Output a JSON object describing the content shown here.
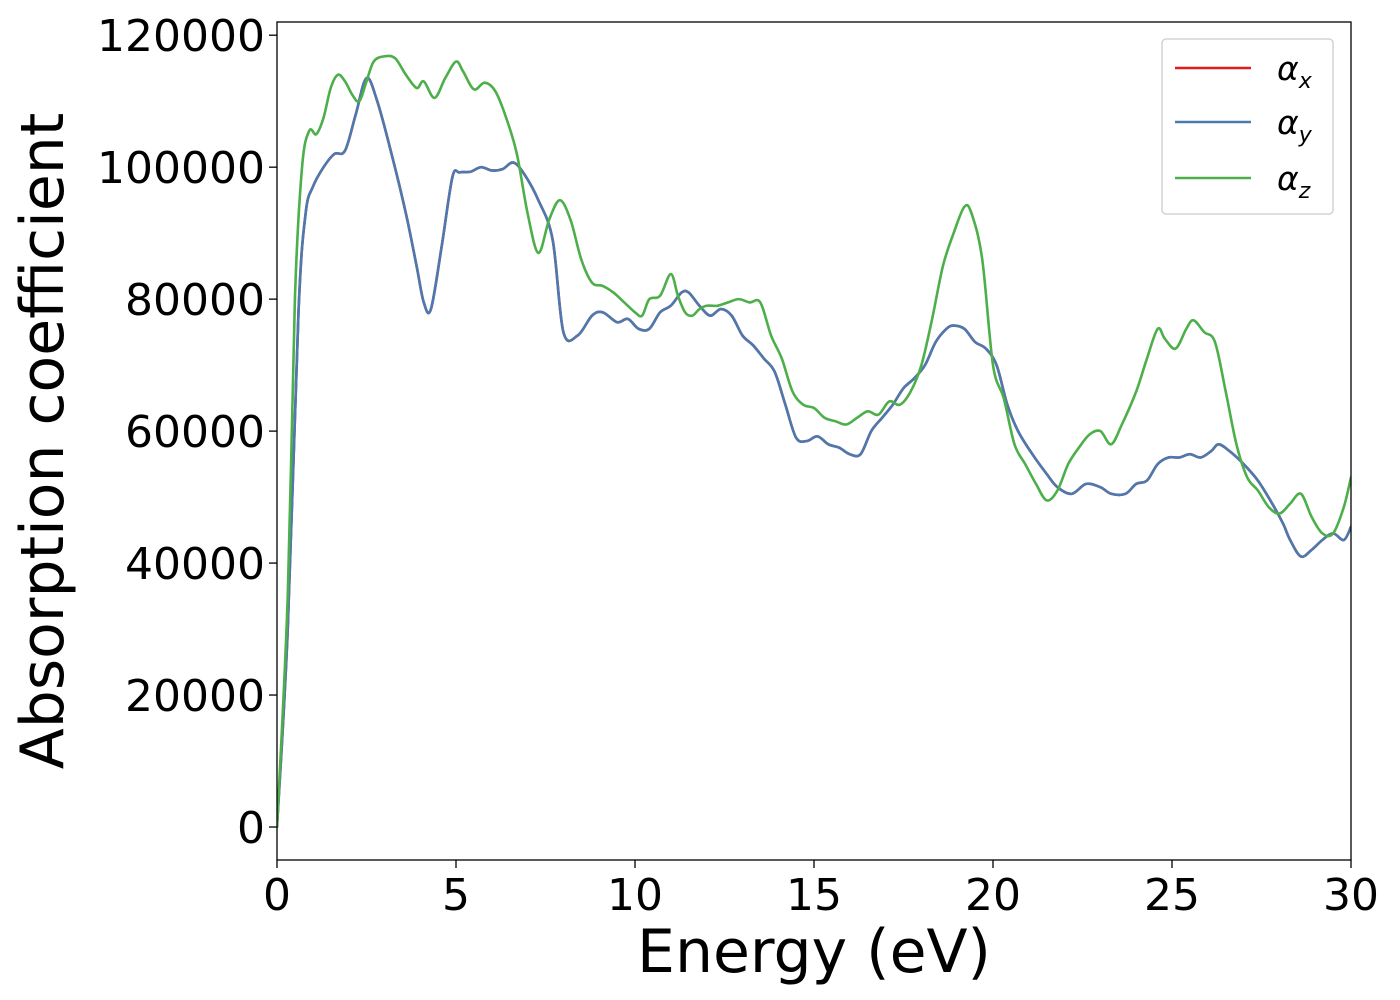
{
  "chart_data": {
    "type": "line",
    "title": "",
    "xlabel": "Energy (eV)",
    "ylabel": "Absorption coefficient",
    "xlim": [
      0,
      30
    ],
    "ylim": [
      -5000,
      122000
    ],
    "x_ticks": [
      "0",
      "5",
      "10",
      "15",
      "20",
      "25",
      "30"
    ],
    "y_ticks": [
      "0",
      "20000",
      "40000",
      "60000",
      "80000",
      "100000",
      "120000"
    ],
    "grid": false,
    "legend_position": "top-right",
    "series": [
      {
        "name": "αx",
        "legend_symbol": "α",
        "legend_subscript": "x",
        "color": "#e41a1c",
        "hidden_under": "αy",
        "x": [
          0,
          0.3,
          0.6,
          0.8,
          1.0,
          1.3,
          1.6,
          1.9,
          2.2,
          2.5,
          2.8,
          3.2,
          3.6,
          3.9,
          4.1,
          4.3,
          4.6,
          4.9,
          5.1,
          5.4,
          5.7,
          6.0,
          6.3,
          6.6,
          6.9,
          7.3,
          7.7,
          8.0,
          8.4,
          8.8,
          9.1,
          9.5,
          9.8,
          10.1,
          10.4,
          10.7,
          11.0,
          11.3,
          11.5,
          11.8,
          12.1,
          12.4,
          12.7,
          13.0,
          13.3,
          13.6,
          13.9,
          14.2,
          14.5,
          14.8,
          15.1,
          15.4,
          15.7,
          16.0,
          16.3,
          16.6,
          16.9,
          17.2,
          17.5,
          17.8,
          18.1,
          18.4,
          18.7,
          18.9,
          19.2,
          19.5,
          19.8,
          20.1,
          20.4,
          20.7,
          21.1,
          21.5,
          21.8,
          22.2,
          22.6,
          23.0,
          23.3,
          23.7,
          24.0,
          24.3,
          24.6,
          24.9,
          25.2,
          25.5,
          25.8,
          26.1,
          26.3,
          26.6,
          27.0,
          27.4,
          27.8,
          28.1,
          28.3,
          28.6,
          28.9,
          29.2,
          29.5,
          29.8,
          30.0
        ],
        "y": [
          0,
          30000,
          78000,
          93000,
          97000,
          100000,
          102000,
          102500,
          108000,
          113500,
          110000,
          102000,
          93000,
          85000,
          79500,
          78500,
          88000,
          98500,
          99200,
          99300,
          100000,
          99500,
          99700,
          100700,
          99000,
          95000,
          89000,
          75000,
          74500,
          77500,
          78000,
          76500,
          77000,
          75500,
          75500,
          78000,
          79000,
          81000,
          81000,
          79000,
          77500,
          78500,
          77500,
          74500,
          73000,
          71000,
          69000,
          64000,
          59000,
          58500,
          59200,
          58000,
          57500,
          56500,
          56500,
          60000,
          62000,
          64000,
          66500,
          68000,
          70000,
          73500,
          75500,
          76000,
          75500,
          73500,
          72500,
          70000,
          64000,
          60000,
          56500,
          53500,
          51500,
          50500,
          52000,
          51500,
          50500,
          50500,
          52000,
          52500,
          55000,
          56000,
          56000,
          56500,
          56000,
          57000,
          58000,
          57000,
          55000,
          52500,
          49000,
          46000,
          43500,
          41000,
          42000,
          43500,
          44500,
          43500,
          45500
        ]
      },
      {
        "name": "αy",
        "legend_symbol": "α",
        "legend_subscript": "y",
        "color": "#4a7aaf",
        "x": [
          0,
          0.3,
          0.6,
          0.8,
          1.0,
          1.3,
          1.6,
          1.9,
          2.2,
          2.5,
          2.8,
          3.2,
          3.6,
          3.9,
          4.1,
          4.3,
          4.6,
          4.9,
          5.1,
          5.4,
          5.7,
          6.0,
          6.3,
          6.6,
          6.9,
          7.3,
          7.7,
          8.0,
          8.4,
          8.8,
          9.1,
          9.5,
          9.8,
          10.1,
          10.4,
          10.7,
          11.0,
          11.3,
          11.5,
          11.8,
          12.1,
          12.4,
          12.7,
          13.0,
          13.3,
          13.6,
          13.9,
          14.2,
          14.5,
          14.8,
          15.1,
          15.4,
          15.7,
          16.0,
          16.3,
          16.6,
          16.9,
          17.2,
          17.5,
          17.8,
          18.1,
          18.4,
          18.7,
          18.9,
          19.2,
          19.5,
          19.8,
          20.1,
          20.4,
          20.7,
          21.1,
          21.5,
          21.8,
          22.2,
          22.6,
          23.0,
          23.3,
          23.7,
          24.0,
          24.3,
          24.6,
          24.9,
          25.2,
          25.5,
          25.8,
          26.1,
          26.3,
          26.6,
          27.0,
          27.4,
          27.8,
          28.1,
          28.3,
          28.6,
          28.9,
          29.2,
          29.5,
          29.8,
          30.0
        ],
        "y": [
          0,
          30000,
          78000,
          93000,
          97000,
          100000,
          102000,
          102500,
          108000,
          113500,
          110000,
          102000,
          93000,
          85000,
          79500,
          78500,
          88000,
          98500,
          99200,
          99300,
          100000,
          99500,
          99700,
          100700,
          99000,
          95000,
          89000,
          75000,
          74500,
          77500,
          78000,
          76500,
          77000,
          75500,
          75500,
          78000,
          79000,
          81000,
          81000,
          79000,
          77500,
          78500,
          77500,
          74500,
          73000,
          71000,
          69000,
          64000,
          59000,
          58500,
          59200,
          58000,
          57500,
          56500,
          56500,
          60000,
          62000,
          64000,
          66500,
          68000,
          70000,
          73500,
          75500,
          76000,
          75500,
          73500,
          72500,
          70000,
          64000,
          60000,
          56500,
          53500,
          51500,
          50500,
          52000,
          51500,
          50500,
          50500,
          52000,
          52500,
          55000,
          56000,
          56000,
          56500,
          56000,
          57000,
          58000,
          57000,
          55000,
          52500,
          49000,
          46000,
          43500,
          41000,
          42000,
          43500,
          44500,
          43500,
          45500
        ]
      },
      {
        "name": "αz",
        "legend_symbol": "α",
        "legend_subscript": "z",
        "color": "#4daf4a",
        "x": [
          0,
          0.3,
          0.5,
          0.7,
          0.9,
          1.1,
          1.3,
          1.5,
          1.7,
          1.9,
          2.1,
          2.3,
          2.5,
          2.7,
          3.0,
          3.3,
          3.6,
          3.9,
          4.1,
          4.4,
          4.7,
          5.0,
          5.2,
          5.5,
          5.8,
          6.1,
          6.4,
          6.7,
          7.0,
          7.3,
          7.6,
          7.9,
          8.2,
          8.5,
          8.8,
          9.1,
          9.4,
          9.7,
          10.0,
          10.2,
          10.4,
          10.7,
          11.0,
          11.2,
          11.4,
          11.6,
          11.8,
          12.0,
          12.3,
          12.6,
          12.9,
          13.2,
          13.5,
          13.8,
          14.1,
          14.4,
          14.7,
          15.0,
          15.3,
          15.6,
          15.9,
          16.2,
          16.5,
          16.8,
          17.1,
          17.4,
          17.7,
          18.0,
          18.3,
          18.6,
          18.9,
          19.2,
          19.4,
          19.7,
          20.0,
          20.3,
          20.6,
          20.9,
          21.2,
          21.5,
          21.8,
          22.1,
          22.4,
          22.7,
          23.0,
          23.3,
          23.6,
          24.0,
          24.3,
          24.6,
          24.8,
          25.1,
          25.4,
          25.6,
          25.9,
          26.2,
          26.5,
          26.8,
          27.1,
          27.4,
          27.7,
          28.0,
          28.3,
          28.6,
          28.9,
          29.2,
          29.5,
          29.8,
          30.0
        ],
        "y": [
          0,
          35000,
          80000,
          100000,
          105500,
          105000,
          107500,
          112000,
          114000,
          113000,
          111000,
          110000,
          113000,
          116000,
          116800,
          116500,
          114000,
          112000,
          113000,
          110500,
          113500,
          116000,
          114500,
          111800,
          112800,
          111500,
          107500,
          102000,
          93000,
          87000,
          92000,
          95000,
          92000,
          86000,
          82500,
          82000,
          81000,
          79500,
          78000,
          77500,
          80000,
          80500,
          83800,
          80500,
          78000,
          77500,
          78500,
          79000,
          79000,
          79500,
          80000,
          79500,
          79500,
          74500,
          71000,
          66000,
          64000,
          63500,
          62000,
          61500,
          61000,
          62000,
          63000,
          62500,
          64500,
          64000,
          66000,
          70000,
          77000,
          85000,
          90000,
          94000,
          93000,
          86000,
          70000,
          65000,
          58000,
          55000,
          52000,
          49500,
          51000,
          55000,
          57500,
          59500,
          60000,
          58000,
          61000,
          66000,
          71000,
          75500,
          74000,
          72500,
          75500,
          76800,
          75000,
          73500,
          66000,
          58000,
          53000,
          51000,
          48500,
          47500,
          49000,
          50500,
          47000,
          44500,
          44500,
          48500,
          53000
        ]
      }
    ]
  }
}
